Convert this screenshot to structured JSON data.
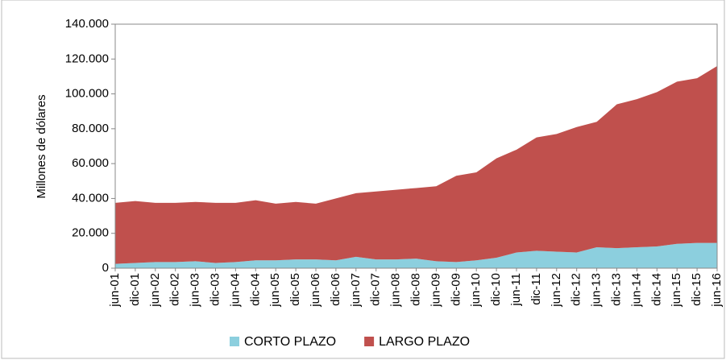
{
  "chart_data": {
    "type": "area",
    "stacked": true,
    "y_label": "Millones de dólares",
    "categories": [
      "jun-01",
      "dic-01",
      "jun-02",
      "dic-02",
      "jun-03",
      "dic-03",
      "jun-04",
      "dic-04",
      "jun-05",
      "dic-05",
      "jun-06",
      "dic-06",
      "jun-07",
      "dic-07",
      "jun-08",
      "dic-08",
      "jun-09",
      "dic-09",
      "jun-10",
      "dic-10",
      "jun-11",
      "dic-11",
      "jun-12",
      "dic-12",
      "jun-13",
      "dic-13",
      "jun-14",
      "dic-14",
      "jun-15",
      "dic-15",
      "jun-16"
    ],
    "series": [
      {
        "name": "CORTO PLAZO",
        "color": "#8ccfde",
        "values": [
          2500,
          3000,
          3500,
          3500,
          4000,
          3000,
          3500,
          4500,
          4500,
          5000,
          5000,
          4500,
          6500,
          5000,
          5000,
          5500,
          4000,
          3500,
          4500,
          6000,
          9000,
          10000,
          9500,
          9000,
          12000,
          11500,
          12000,
          12500,
          14000,
          14500,
          14500
        ]
      },
      {
        "name": "LARGO PLAZO",
        "color": "#c0504d",
        "values": [
          35000,
          35500,
          34000,
          34000,
          34000,
          34500,
          34000,
          34500,
          32500,
          33000,
          32000,
          35500,
          36500,
          39000,
          40000,
          40500,
          43000,
          49500,
          50500,
          57000,
          59000,
          65000,
          67500,
          72000,
          72000,
          82500,
          85000,
          88500,
          93000,
          94500,
          101500
        ]
      }
    ],
    "ylim": [
      0,
      140000
    ],
    "yticks": [
      {
        "value": 0,
        "label": "0"
      },
      {
        "value": 20000,
        "label": "20.000"
      },
      {
        "value": 40000,
        "label": "40.000"
      },
      {
        "value": 60000,
        "label": "60.000"
      },
      {
        "value": 80000,
        "label": "80.000"
      },
      {
        "value": 100000,
        "label": "100.000"
      },
      {
        "value": 120000,
        "label": "120.000"
      },
      {
        "value": 140000,
        "label": "140.000"
      }
    ],
    "legend": "bottom"
  }
}
